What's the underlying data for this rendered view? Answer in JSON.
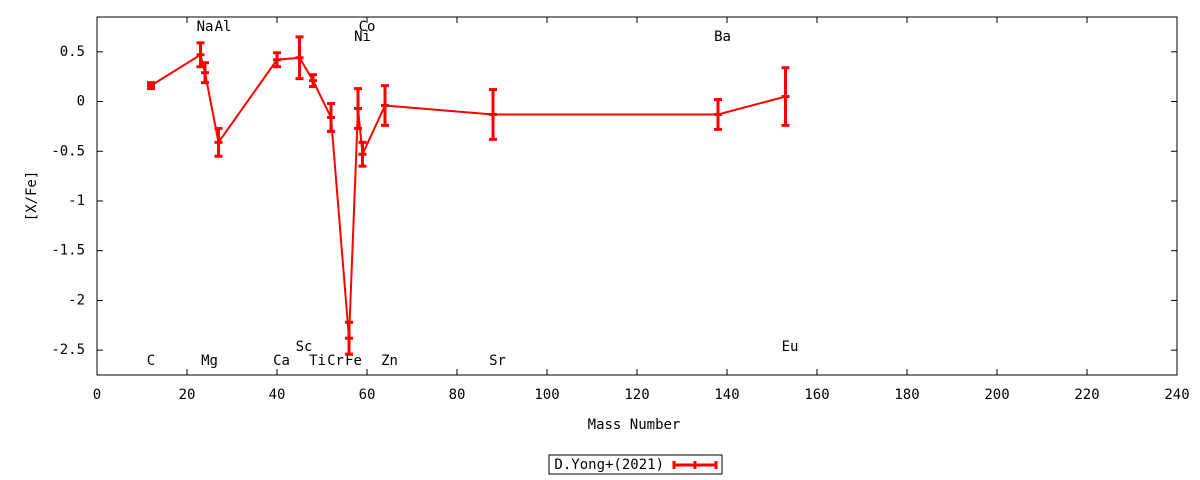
{
  "chart_data": {
    "type": "errorline",
    "xlabel": "Mass Number",
    "ylabel": "[X/Fe]",
    "xlim": [
      0,
      240
    ],
    "ylim": [
      -2.75,
      0.85
    ],
    "xticks": [
      0,
      20,
      40,
      60,
      80,
      100,
      120,
      140,
      160,
      180,
      200,
      220,
      240
    ],
    "yticks": [
      0.5,
      0,
      -0.5,
      -1,
      -1.5,
      -2,
      -2.5
    ],
    "series": [
      {
        "name": "D.Yong+(2021)",
        "color": "#ff0000",
        "x": [
          12,
          23,
          24,
          27,
          40,
          45,
          48,
          52,
          56,
          58,
          59,
          64,
          88,
          138,
          153
        ],
        "values": [
          0.16,
          0.47,
          0.29,
          -0.41,
          0.42,
          0.44,
          0.21,
          -0.16,
          -2.38,
          -0.07,
          -0.53,
          -0.04,
          -0.13,
          -0.13,
          0.05
        ],
        "errors": [
          0.03,
          0.12,
          0.1,
          0.14,
          0.07,
          0.21,
          0.06,
          0.14,
          0.16,
          0.2,
          0.12,
          0.2,
          0.25,
          0.15,
          0.29
        ]
      }
    ],
    "annotations": [
      {
        "text": "C",
        "x": 12,
        "y": -2.61
      },
      {
        "text": "Na",
        "x": 24,
        "y": 0.75
      },
      {
        "text": "Al",
        "x": 28,
        "y": 0.75
      },
      {
        "text": "Mg",
        "x": 25,
        "y": -2.61
      },
      {
        "text": "Ca",
        "x": 41,
        "y": -2.61
      },
      {
        "text": "Sc",
        "x": 46,
        "y": -2.47
      },
      {
        "text": "Ti",
        "x": 49,
        "y": -2.61
      },
      {
        "text": "Cr",
        "x": 53,
        "y": -2.61
      },
      {
        "text": "Fe",
        "x": 57,
        "y": -2.61
      },
      {
        "text": "Co",
        "x": 60,
        "y": 0.75
      },
      {
        "text": "Ni",
        "x": 59,
        "y": 0.65
      },
      {
        "text": "Zn",
        "x": 65,
        "y": -2.61
      },
      {
        "text": "Sr",
        "x": 89,
        "y": -2.61
      },
      {
        "text": "Ba",
        "x": 139,
        "y": 0.65
      },
      {
        "text": "Eu",
        "x": 154,
        "y": -2.47
      }
    ]
  }
}
